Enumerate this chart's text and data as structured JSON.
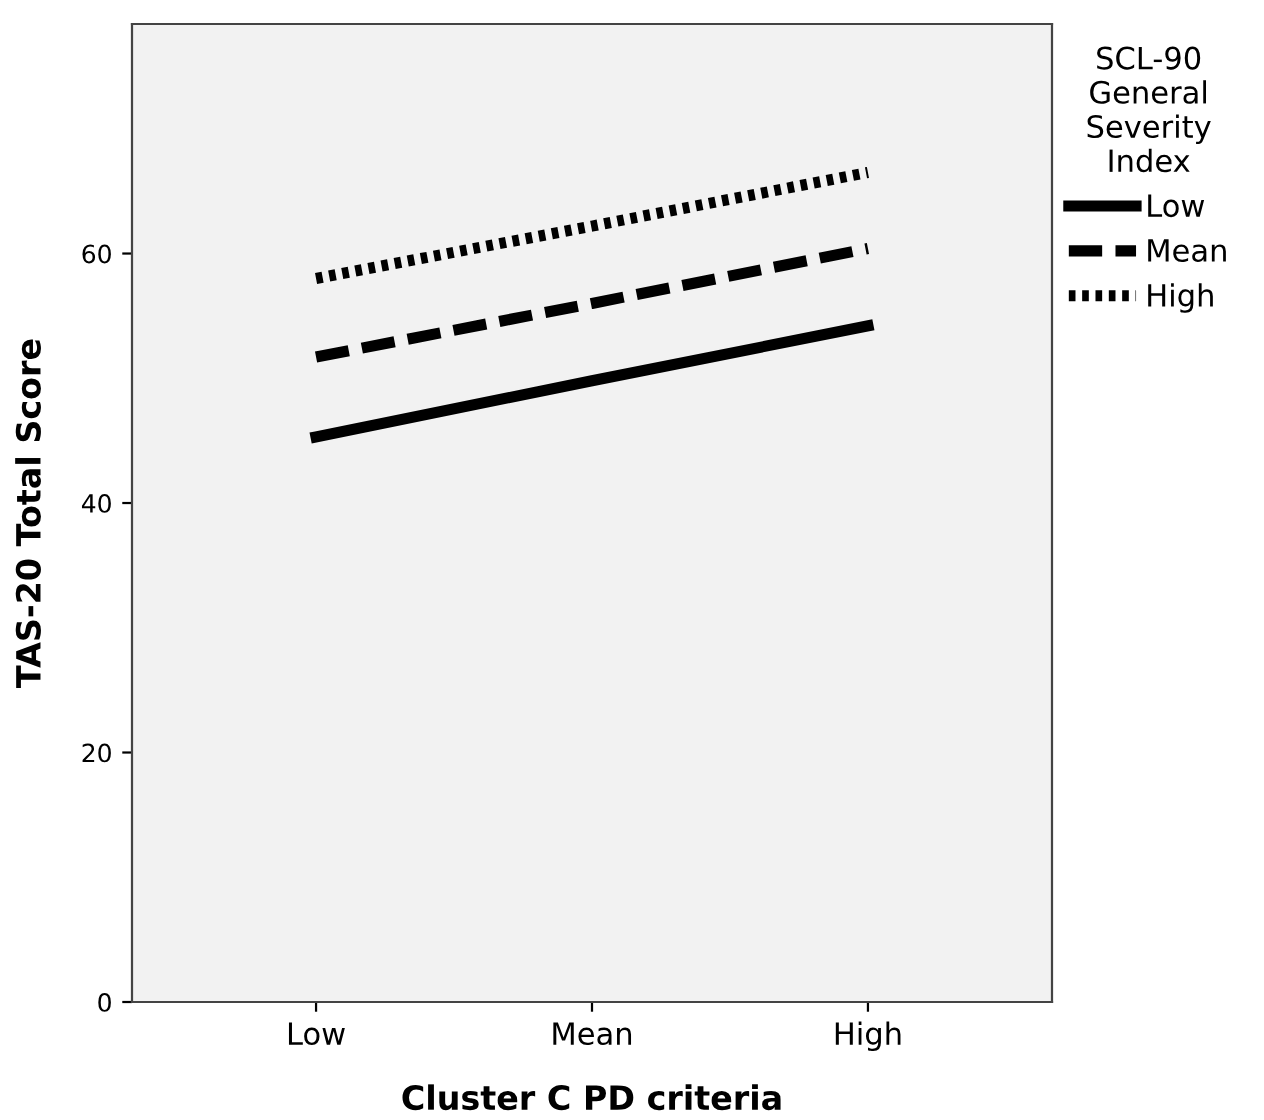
{
  "chart_data": {
    "type": "line",
    "xlabel": "Cluster C PD criteria",
    "ylabel": "TAS-20 Total Score",
    "legend_title": "SCL-90\nGeneral\nSeverity\nIndex",
    "categories": [
      "Low",
      "Mean",
      "High"
    ],
    "series": [
      {
        "name": "Low",
        "color": "#000000",
        "line_style": "solid",
        "values": [
          45.3,
          49.8,
          54.2
        ]
      },
      {
        "name": "Mean",
        "color": "#000000",
        "line_style": "dashed",
        "values": [
          51.7,
          56.0,
          60.4
        ]
      },
      {
        "name": "High",
        "color": "#000000",
        "line_style": "dotted",
        "values": [
          58.0,
          62.2,
          66.5
        ]
      }
    ],
    "ylim": [
      0,
      78.4
    ],
    "yticks": [
      0,
      20,
      40,
      60
    ],
    "grid": false,
    "legend": "right",
    "marker": "none"
  }
}
